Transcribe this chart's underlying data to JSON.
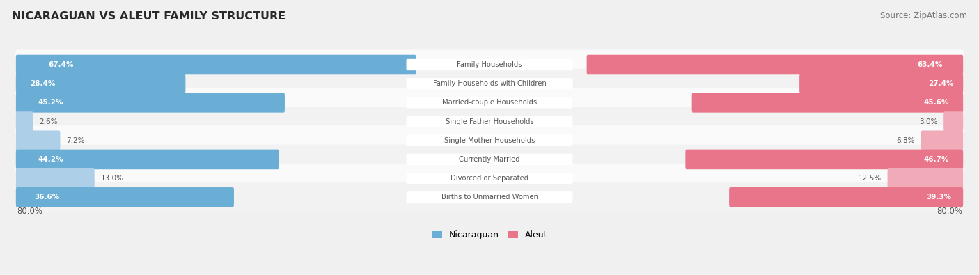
{
  "title": "NICARAGUAN VS ALEUT FAMILY STRUCTURE",
  "source": "Source: ZipAtlas.com",
  "categories": [
    "Family Households",
    "Family Households with Children",
    "Married-couple Households",
    "Single Father Households",
    "Single Mother Households",
    "Currently Married",
    "Divorced or Separated",
    "Births to Unmarried Women"
  ],
  "nicaraguan_values": [
    67.4,
    28.4,
    45.2,
    2.6,
    7.2,
    44.2,
    13.0,
    36.6
  ],
  "aleut_values": [
    63.4,
    27.4,
    45.6,
    3.0,
    6.8,
    46.7,
    12.5,
    39.3
  ],
  "max_val": 80.0,
  "nicaraguan_color_strong": "#6aaed6",
  "nicaraguan_color_light": "#aecfe8",
  "aleut_color_strong": "#e8758a",
  "aleut_color_light": "#f0aab8",
  "label_color_dark": "#555555",
  "background_color": "#f0f0f0",
  "row_bg_light": "#f8f8f8",
  "row_bg_dark": "#ececec",
  "legend_nicaraguan": "Nicaraguan",
  "legend_aleut": "Aleut",
  "axis_label_left": "80.0%",
  "axis_label_right": "80.0%",
  "threshold": 20.0
}
